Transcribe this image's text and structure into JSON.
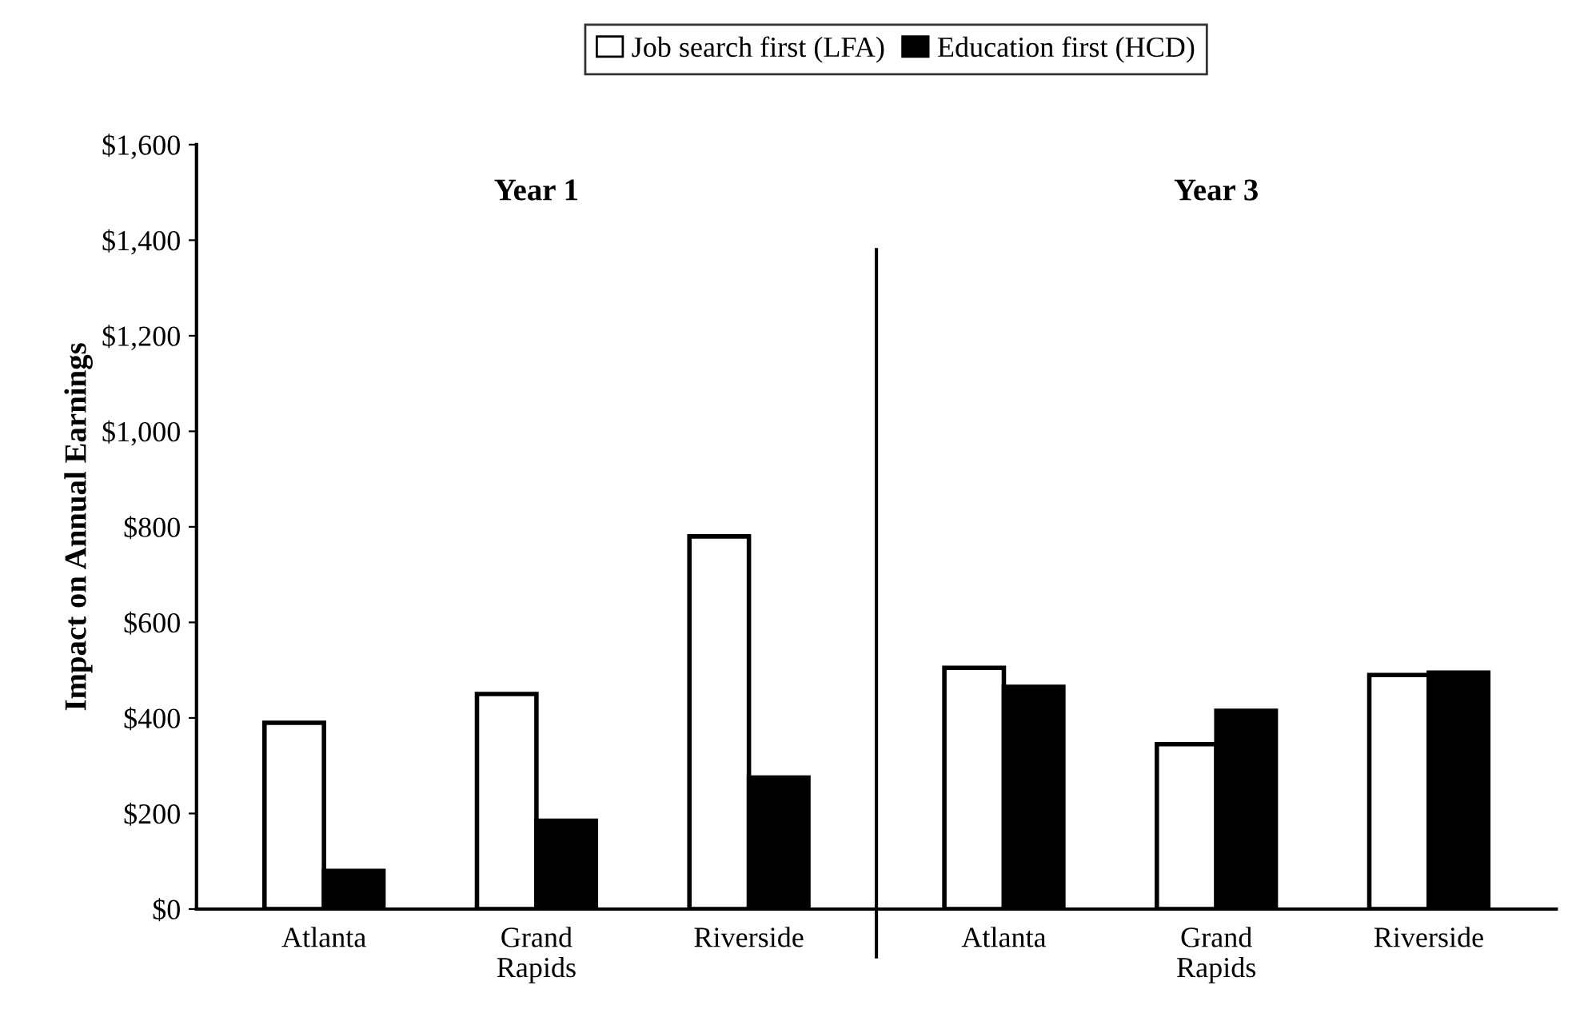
{
  "chart_data": [
    {
      "type": "bar",
      "title": "Year 1",
      "ylabel": "Impact on Annual Earnings",
      "categories": [
        "Atlanta",
        "Grand\nRapids",
        "Riverside"
      ],
      "series": [
        {
          "name": "Job search first (LFA)",
          "color": "#ffffff",
          "values": [
            390,
            450,
            780
          ]
        },
        {
          "name": "Education first (HCD)",
          "color": "#000000",
          "values": [
            80,
            185,
            275
          ]
        }
      ],
      "ylim": [
        0,
        1600
      ],
      "yticks": [
        {
          "value": 0,
          "label": "$0"
        },
        {
          "value": 200,
          "label": "$200"
        },
        {
          "value": 400,
          "label": "$400"
        },
        {
          "value": 600,
          "label": "$600"
        },
        {
          "value": 800,
          "label": "$800"
        },
        {
          "value": 1000,
          "label": "$1,000"
        },
        {
          "value": 1200,
          "label": "$1,200"
        },
        {
          "value": 1400,
          "label": "$1,400"
        },
        {
          "value": 1600,
          "label": "$1,600"
        }
      ],
      "legend": "top",
      "grid": false
    },
    {
      "type": "bar",
      "title": "Year 3",
      "categories": [
        "Atlanta",
        "Grand\nRapids",
        "Riverside"
      ],
      "series": [
        {
          "color": "#ffffff",
          "values": [
            505,
            345,
            490
          ]
        },
        {
          "color": "#000000",
          "values": [
            465,
            415,
            495
          ]
        }
      ],
      "ylim": [
        0,
        1600
      ],
      "tick_labels": "x",
      "grid": false
    }
  ]
}
